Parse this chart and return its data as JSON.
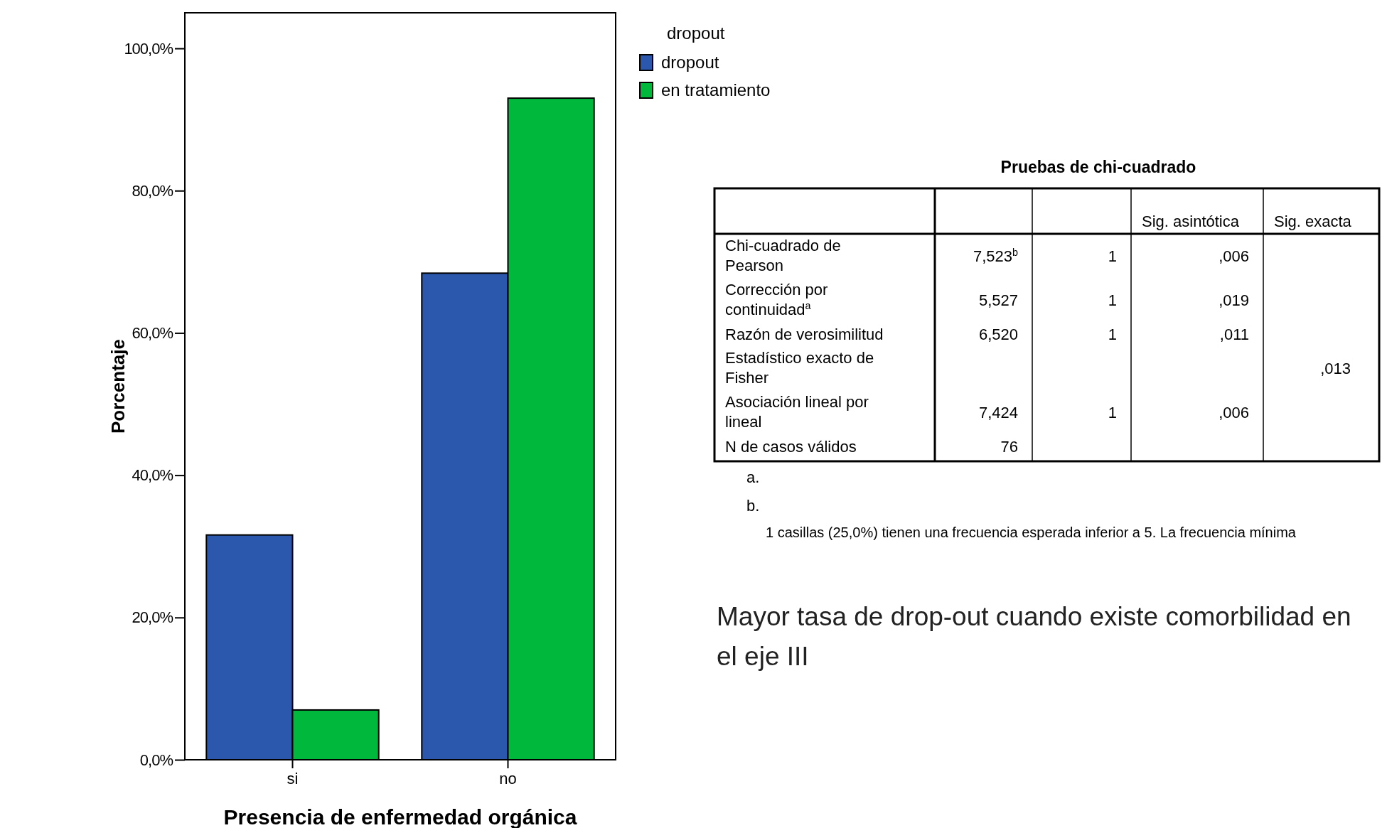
{
  "chart_data": [
    {
      "type": "bar",
      "xlabel": "Presencia de enfermedad orgánica",
      "ylabel": "Porcentaje",
      "categories": [
        "si",
        "no"
      ],
      "series": [
        {
          "name": "dropout",
          "color": "#2b57ad",
          "values": [
            31.6,
            68.4
          ]
        },
        {
          "name": "en tratamiento",
          "color": "#00b83c",
          "values": [
            7.0,
            93.0
          ]
        }
      ],
      "ylim": [
        0,
        105
      ],
      "yticks": [
        {
          "value": 0,
          "label": "0,0%"
        },
        {
          "value": 20,
          "label": "20,0%"
        },
        {
          "value": 40,
          "label": "40,0%"
        },
        {
          "value": 60,
          "label": "60,0%"
        },
        {
          "value": 80,
          "label": "80,0%"
        },
        {
          "value": 100,
          "label": "100,0%"
        }
      ],
      "legend_title": "dropout",
      "legend": "right"
    },
    {
      "type": "other",
      "title": "Pruebas de chi-cuadrado",
      "categories": [
        null,
        null,
        "Sig. asintótica",
        "Sig. exacta"
      ],
      "y_categories": [
        "Chi-cuadrado de Pearson",
        "Corrección por continuidad$^{a}$",
        "Razón de verosimilitud",
        "Estadístico exacto de Fisher",
        "Asociación lineal por lineal",
        "N de casos válidos"
      ],
      "cell_labels": [
        [
          "7,523$^{b}$",
          "1",
          ",006",
          null
        ],
        [
          "5,527",
          "1",
          ",019",
          null
        ],
        [
          "6,520",
          "1",
          ",011",
          null
        ],
        [
          null,
          null,
          null,
          ",013"
        ],
        [
          "7,424",
          "1",
          ",006",
          null
        ],
        [
          "76",
          null,
          null,
          null
        ]
      ],
      "annotations": [
        "a.",
        "b.",
        "1 casillas (25,0%) tienen una frecuencia esperada inferior a 5. La frecuencia mínima",
        "Mayor tasa de drop-out cuando existe comorbilidad en el eje III"
      ]
    }
  ]
}
